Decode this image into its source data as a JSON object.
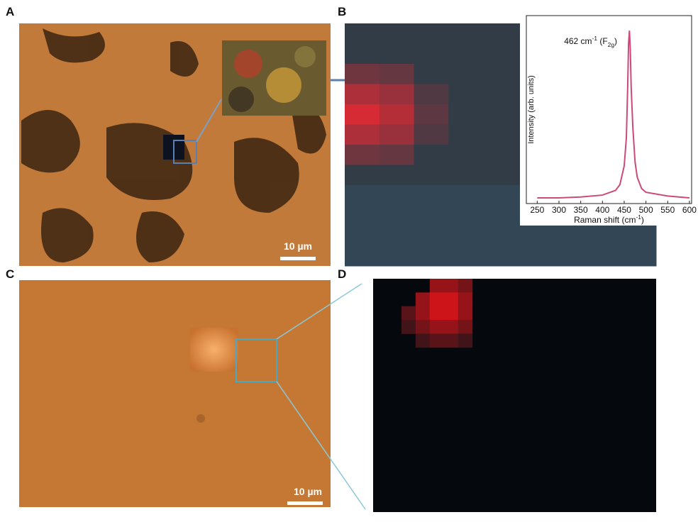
{
  "panels": [
    {
      "label": "A",
      "scale_bar": "10 µm"
    },
    {
      "label": "B"
    },
    {
      "label": "C",
      "scale_bar": "10 µm"
    },
    {
      "label": "D"
    }
  ],
  "chart_data": {
    "type": "line",
    "xlabel": [
      "Raman shift (cm",
      "-1",
      ")"
    ],
    "ylabel": "Intensity (arb. units)",
    "annotation": [
      "462 cm",
      "-1",
      " (F",
      "2g",
      ")"
    ],
    "x": [
      250,
      300,
      350,
      400,
      430,
      440,
      450,
      455,
      458,
      460,
      462,
      464,
      466,
      470,
      475,
      480,
      490,
      500,
      550,
      600
    ],
    "series": [
      {
        "color": "#cc4a7a",
        "values": [
          3,
          3,
          3.5,
          4.5,
          7,
          10,
          20,
          35,
          62,
          85,
          92,
          82,
          62,
          40,
          22,
          14,
          8,
          6,
          4,
          3
        ]
      }
    ],
    "xlim": [
      225,
      605
    ],
    "xticks": [
      250,
      300,
      350,
      400,
      450,
      500,
      550,
      600
    ],
    "ylim": [
      0,
      100
    ]
  }
}
